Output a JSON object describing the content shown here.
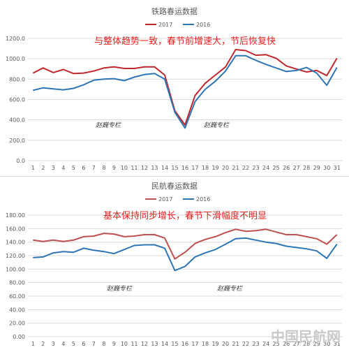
{
  "chart_data": [
    {
      "type": "line",
      "title": "铁路春运数据",
      "annotation": "与整体趋势一致，春节前增速大，节后恢复快",
      "watermark": "赵巍专栏",
      "x": [
        1,
        2,
        3,
        4,
        5,
        6,
        7,
        8,
        9,
        10,
        11,
        12,
        13,
        14,
        15,
        16,
        17,
        18,
        19,
        20,
        21,
        22,
        23,
        24,
        25,
        26,
        27,
        28,
        29,
        30,
        31
      ],
      "yticks": [
        "0.0",
        "200.0",
        "400.0",
        "600.0",
        "800.0",
        "1000.0",
        "1200.0"
      ],
      "ylim": [
        0,
        1200
      ],
      "legend_position": "top",
      "grid": true,
      "series": [
        {
          "name": "2017",
          "color": "#c0282d",
          "values": [
            860,
            910,
            865,
            895,
            855,
            860,
            880,
            910,
            920,
            905,
            905,
            920,
            920,
            840,
            490,
            350,
            640,
            760,
            840,
            920,
            1090,
            1080,
            1035,
            1040,
            1005,
            930,
            900,
            870,
            885,
            835,
            1005
          ]
        },
        {
          "name": "2016",
          "color": "#2e75b6",
          "values": [
            690,
            715,
            705,
            695,
            710,
            745,
            790,
            800,
            805,
            785,
            820,
            845,
            855,
            800,
            475,
            320,
            580,
            700,
            780,
            880,
            1030,
            1030,
            985,
            945,
            910,
            875,
            885,
            915,
            860,
            740,
            915
          ]
        }
      ]
    },
    {
      "type": "line",
      "title": "民航春运数据",
      "annotation": "基本保持同步增长，春节下滑幅度不明显",
      "watermark": "赵巍专栏",
      "x": [
        1,
        2,
        3,
        4,
        5,
        6,
        7,
        8,
        9,
        10,
        11,
        12,
        13,
        14,
        15,
        16,
        17,
        18,
        19,
        20,
        21,
        22,
        23,
        24,
        25,
        26,
        27,
        28,
        29,
        30,
        31
      ],
      "yticks": [
        "0.00",
        "20.00",
        "40.00",
        "60.00",
        "80.00",
        "100.00",
        "120.00",
        "140.00",
        "160.00",
        "180.00"
      ],
      "ylim": [
        0,
        180
      ],
      "legend_position": "top",
      "grid": true,
      "series": [
        {
          "name": "2017",
          "color": "#c0504d",
          "values": [
            143,
            141,
            143,
            141,
            143,
            148,
            149,
            153,
            152,
            148,
            149,
            151,
            151,
            146,
            115,
            125,
            138,
            144,
            148,
            154,
            159,
            156,
            157,
            159,
            155,
            151,
            151,
            148,
            145,
            137,
            151
          ]
        },
        {
          "name": "2016",
          "color": "#2e75b6",
          "values": [
            117,
            118,
            124,
            126,
            125,
            131,
            128,
            126,
            123,
            129,
            135,
            136,
            136,
            131,
            98,
            104,
            118,
            124,
            129,
            137,
            145,
            146,
            143,
            140,
            138,
            134,
            132,
            130,
            127,
            116,
            137
          ]
        }
      ]
    }
  ],
  "corner_watermark": "中国民航网"
}
